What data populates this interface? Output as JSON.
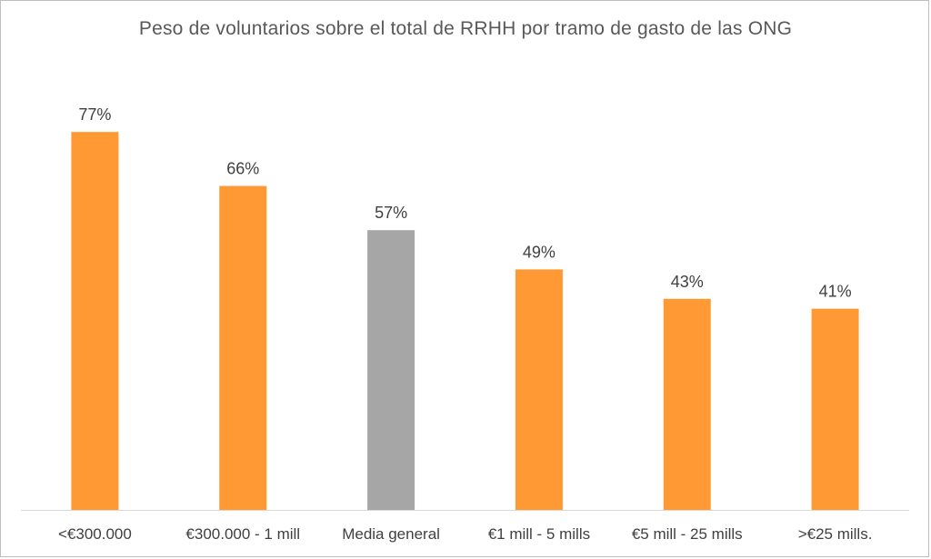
{
  "chart_data": {
    "type": "bar",
    "title": "Peso de voluntarios sobre el total de RRHH por tramo de gasto de las ONG",
    "xlabel": "",
    "ylabel": "",
    "ylim": [
      0,
      100
    ],
    "grid": false,
    "legend": "none",
    "value_suffix": "%",
    "categories": [
      "<€300.000",
      "€300.000 - 1 mill",
      "Media general",
      "€1 mill - 5 mills",
      "€5 mill - 25 mills",
      ">€25 mills."
    ],
    "values": [
      77,
      66,
      57,
      49,
      43,
      41
    ],
    "data_labels": [
      "77%",
      "66%",
      "57%",
      "49%",
      "43%",
      "41%"
    ],
    "highlight_category": "Media general"
  },
  "colors": {
    "bar": "#ff9933",
    "highlight_bar": "#a6a6a6",
    "axis": "#d9d9d9",
    "title": "#595959",
    "text": "#404040"
  }
}
